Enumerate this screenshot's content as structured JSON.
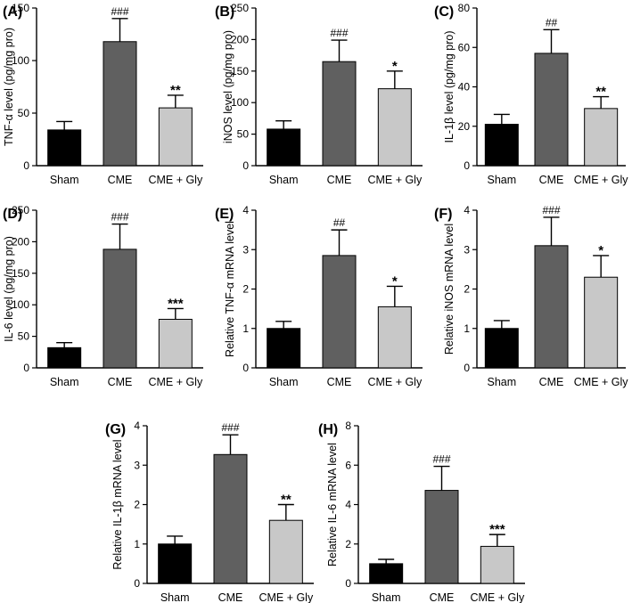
{
  "figure": {
    "colors": {
      "bar_fills": [
        "#000000",
        "#606060",
        "#c8c8c8"
      ],
      "bar_stroke": "#000000",
      "axis": "#000000"
    },
    "errorbar_style": "upper-only"
  },
  "chart_data": [
    {
      "panel": "(A)",
      "type": "bar",
      "categories": [
        "Sham",
        "CME",
        "CME + Gly"
      ],
      "values": [
        34,
        118,
        55
      ],
      "errors": [
        8,
        22,
        12
      ],
      "significance": [
        "",
        "###",
        "**"
      ],
      "ylabel": "TNF-α level (pg/mg pro)",
      "ylim": [
        0,
        150
      ],
      "yticks": [
        0,
        50,
        100,
        150
      ]
    },
    {
      "panel": "(B)",
      "type": "bar",
      "categories": [
        "Sham",
        "CME",
        "CME + Gly"
      ],
      "values": [
        58,
        165,
        122
      ],
      "errors": [
        13,
        34,
        28
      ],
      "significance": [
        "",
        "###",
        "*"
      ],
      "ylabel": "iNOS level (pg/mg pro)",
      "ylim": [
        0,
        250
      ],
      "yticks": [
        0,
        50,
        100,
        150,
        200,
        250
      ]
    },
    {
      "panel": "(C)",
      "type": "bar",
      "categories": [
        "Sham",
        "CME",
        "CME + Gly"
      ],
      "values": [
        21,
        57,
        29
      ],
      "errors": [
        5,
        12,
        6
      ],
      "significance": [
        "",
        "##",
        "**"
      ],
      "ylabel": "IL-1β level (pg/mg pro)",
      "ylim": [
        0,
        80
      ],
      "yticks": [
        0,
        20,
        40,
        60,
        80
      ]
    },
    {
      "panel": "(D)",
      "type": "bar",
      "categories": [
        "Sham",
        "CME",
        "CME + Gly"
      ],
      "values": [
        32,
        188,
        77
      ],
      "errors": [
        8,
        40,
        17
      ],
      "significance": [
        "",
        "###",
        "***"
      ],
      "ylabel": "IL-6 level (pg/mg pro)",
      "ylim": [
        0,
        250
      ],
      "yticks": [
        0,
        50,
        100,
        150,
        200,
        250
      ]
    },
    {
      "panel": "(E)",
      "type": "bar",
      "categories": [
        "Sham",
        "CME",
        "CME + Gly"
      ],
      "values": [
        1.0,
        2.85,
        1.55
      ],
      "errors": [
        0.18,
        0.65,
        0.52
      ],
      "significance": [
        "",
        "##",
        "*"
      ],
      "ylabel": "Relative TNF-α mRNA level",
      "ylim": [
        0,
        4
      ],
      "yticks": [
        0,
        1,
        2,
        3,
        4
      ]
    },
    {
      "panel": "(F)",
      "type": "bar",
      "categories": [
        "Sham",
        "CME",
        "CME + Gly"
      ],
      "values": [
        1.0,
        3.1,
        2.3
      ],
      "errors": [
        0.2,
        0.72,
        0.55
      ],
      "significance": [
        "",
        "###",
        "*"
      ],
      "ylabel": "Relative iNOS mRNA level",
      "ylim": [
        0,
        4
      ],
      "yticks": [
        0,
        1,
        2,
        3,
        4
      ]
    },
    {
      "panel": "(G)",
      "type": "bar",
      "categories": [
        "Sham",
        "CME",
        "CME + Gly"
      ],
      "values": [
        1.0,
        3.27,
        1.6
      ],
      "errors": [
        0.2,
        0.5,
        0.4
      ],
      "significance": [
        "",
        "###",
        "**"
      ],
      "ylabel": "Relative IL-1β mRNA level",
      "ylim": [
        0,
        4
      ],
      "yticks": [
        0,
        1,
        2,
        3,
        4
      ]
    },
    {
      "panel": "(H)",
      "type": "bar",
      "categories": [
        "Sham",
        "CME",
        "CME + Gly"
      ],
      "values": [
        1.0,
        4.72,
        1.88
      ],
      "errors": [
        0.22,
        1.22,
        0.6
      ],
      "significance": [
        "",
        "###",
        "***"
      ],
      "ylabel": "Relative IL-6 mRNA level",
      "ylim": [
        0,
        8
      ],
      "yticks": [
        0,
        2,
        4,
        6,
        8
      ]
    }
  ]
}
